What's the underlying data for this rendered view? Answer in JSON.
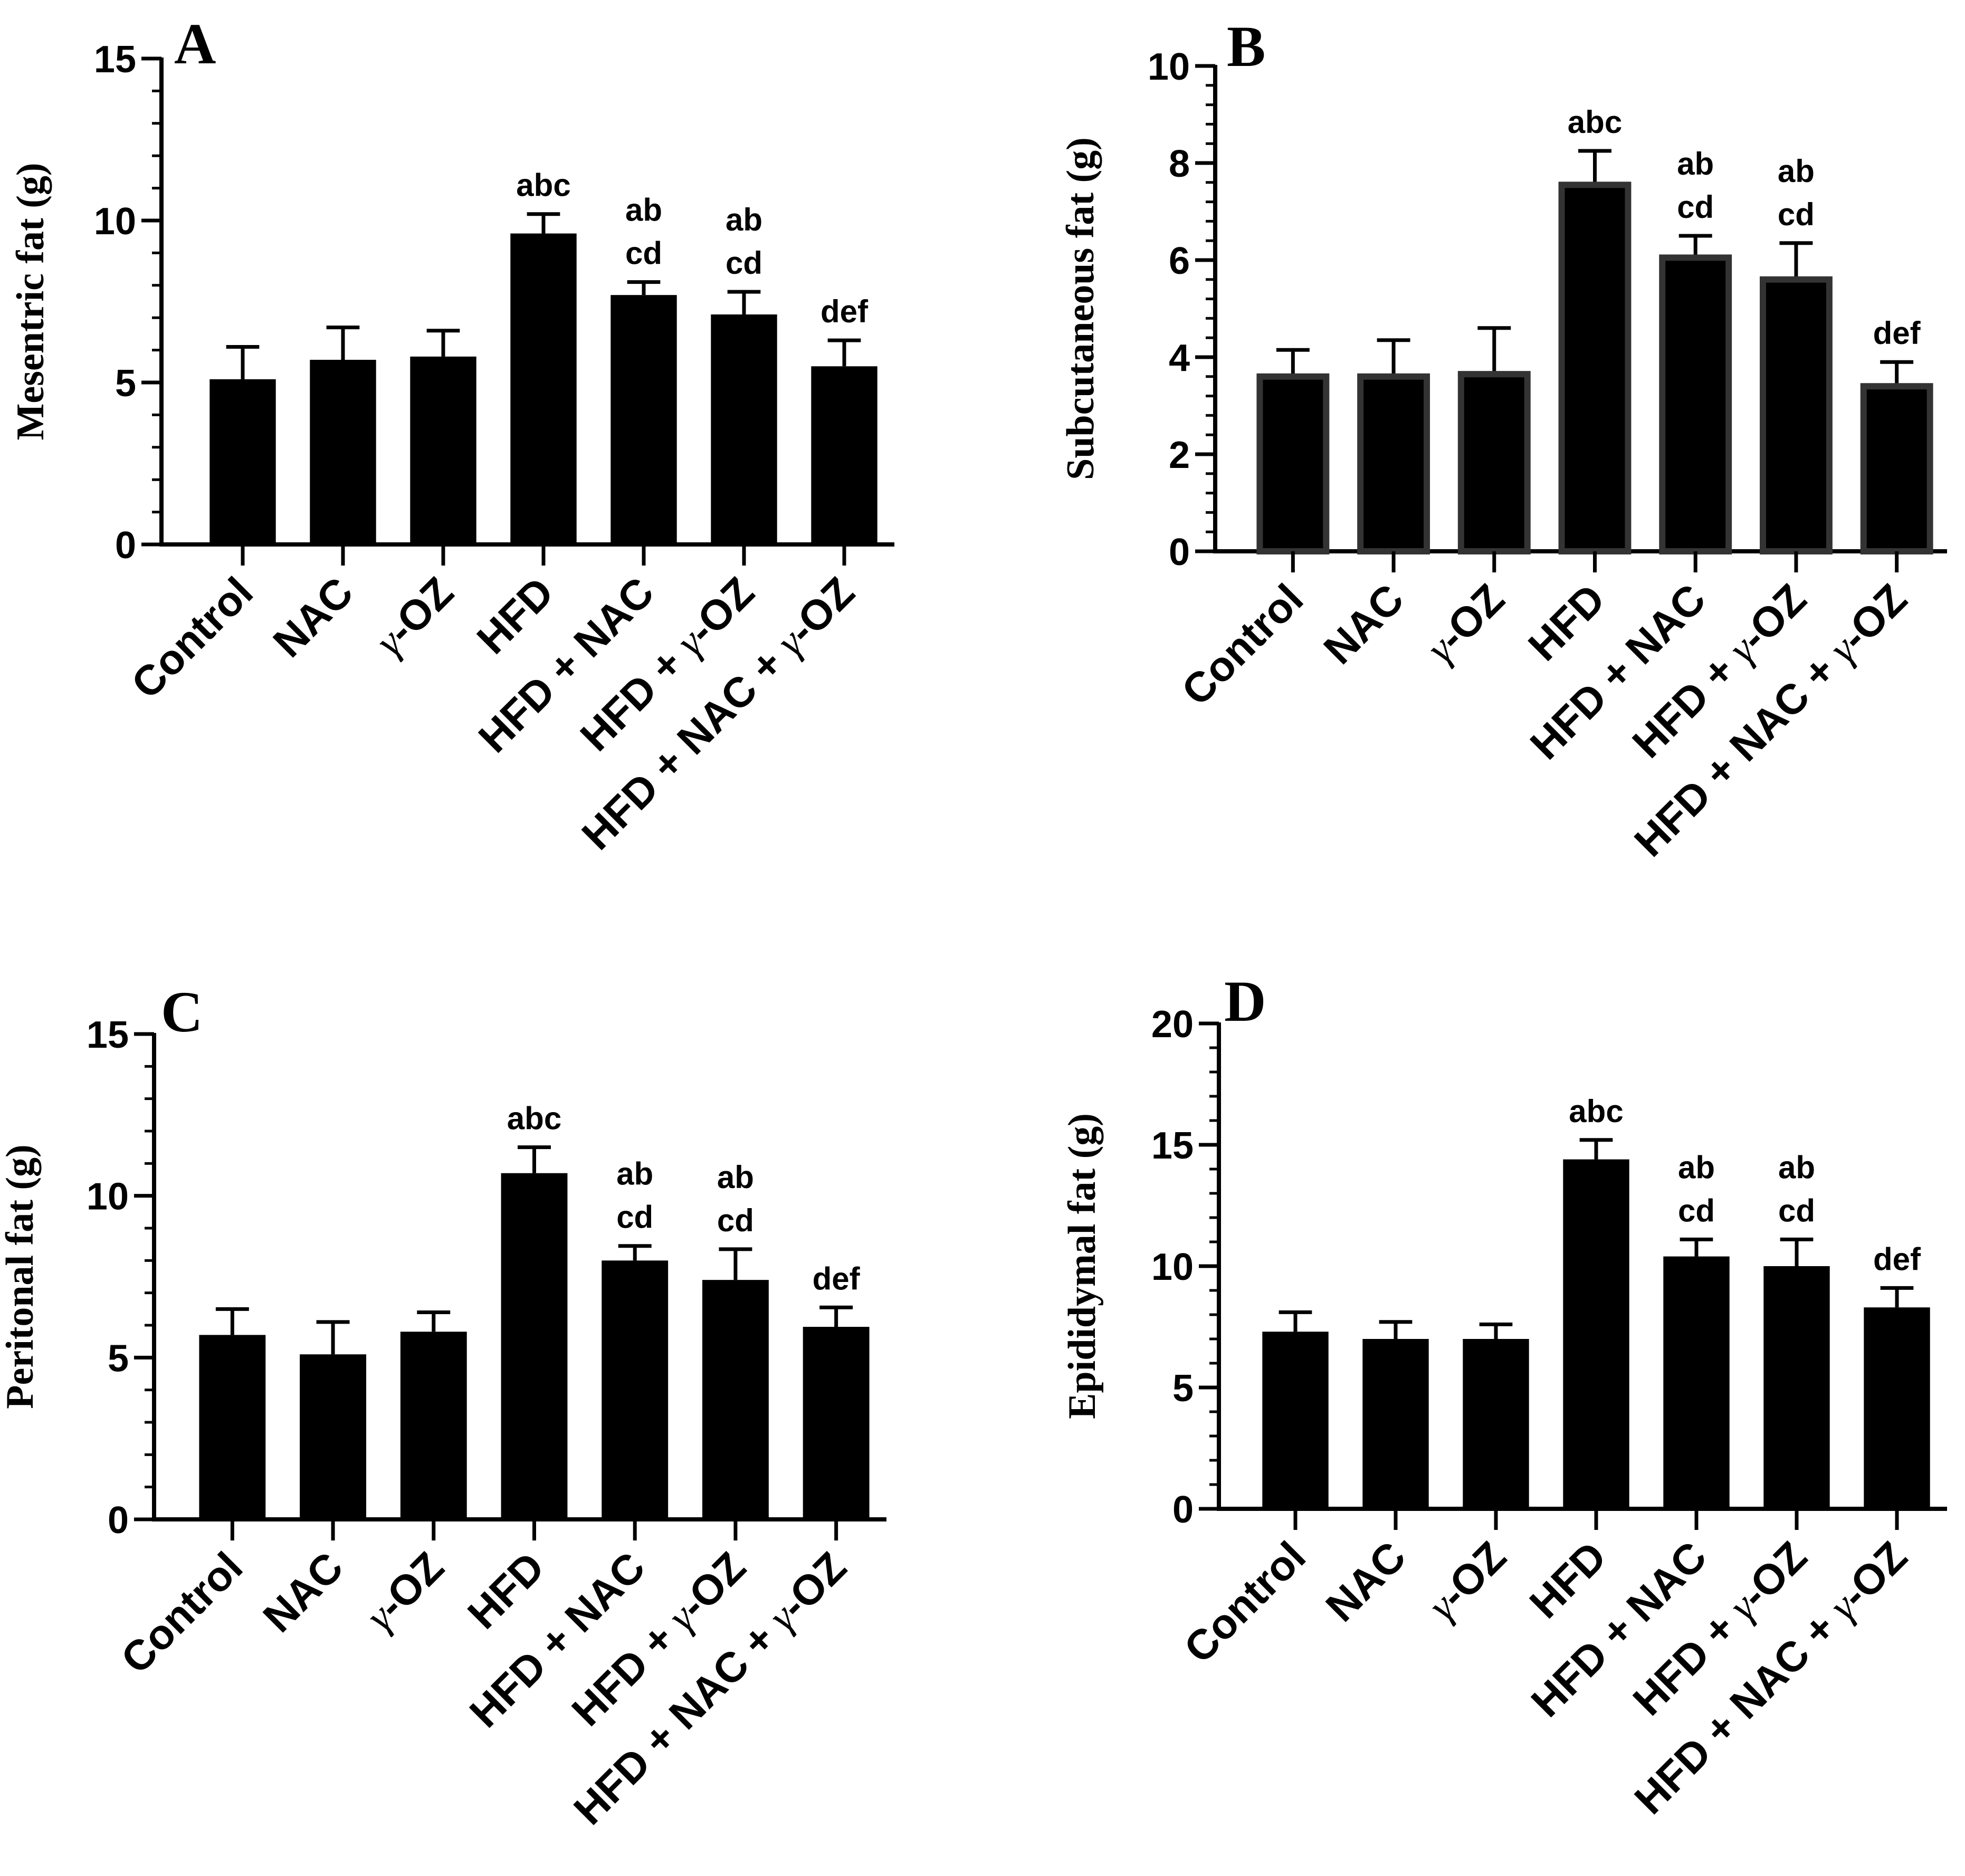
{
  "chart_data": [
    {
      "type": "bar",
      "panel": "A",
      "ylabel": "Mesentric fat (g)",
      "ylim": [
        0,
        15
      ],
      "yticks": [
        0,
        5,
        10,
        15
      ],
      "ytick_labels": [
        "0",
        "5",
        "10",
        "15"
      ],
      "categories": [
        "Control",
        "NAC",
        "γ-OZ",
        "HFD",
        "HFD + NAC",
        "HFD + γ-OZ",
        "HFD + NAC + γ-OZ"
      ],
      "values": [
        5.1,
        5.7,
        5.8,
        9.6,
        7.7,
        7.1,
        5.5
      ],
      "errors": [
        1.0,
        1.0,
        0.8,
        0.6,
        0.4,
        0.7,
        0.8
      ],
      "annotations": [
        [],
        [],
        [],
        [
          "abc"
        ],
        [
          "ab",
          "cd"
        ],
        [
          "ab",
          "cd"
        ],
        [
          "def"
        ]
      ]
    },
    {
      "type": "bar",
      "panel": "B",
      "ylabel": "Subcutaneous fat (g)",
      "ylim": [
        0,
        10
      ],
      "yticks": [
        0,
        2,
        4,
        6,
        8,
        10
      ],
      "ytick_labels": [
        "0",
        "2",
        "4",
        "6",
        "8",
        "10"
      ],
      "categories": [
        "Control",
        "NAC",
        "γ-OZ",
        "HFD",
        "HFD + NAC",
        "HFD + γ-OZ",
        "HFD + NAC + γ-OZ"
      ],
      "values": [
        3.6,
        3.6,
        3.65,
        7.55,
        6.05,
        5.6,
        3.4
      ],
      "errors": [
        0.55,
        0.75,
        0.95,
        0.7,
        0.45,
        0.75,
        0.5
      ],
      "annotations": [
        [],
        [],
        [],
        [
          "abc"
        ],
        [
          "ab",
          "cd"
        ],
        [
          "ab",
          "cd"
        ],
        [
          "def"
        ]
      ]
    },
    {
      "type": "bar",
      "panel": "C",
      "ylabel": "Peritonal fat (g)",
      "ylim": [
        0,
        15
      ],
      "yticks": [
        0,
        5,
        10,
        15
      ],
      "ytick_labels": [
        "0",
        "5",
        "10",
        "15"
      ],
      "categories": [
        "Control",
        "NAC",
        "γ-OZ",
        "HFD",
        "HFD + NAC",
        "HFD + γ-OZ",
        "HFD + NAC + γ-OZ"
      ],
      "values": [
        5.7,
        5.1,
        5.8,
        10.7,
        8.0,
        7.4,
        5.95
      ],
      "errors": [
        0.8,
        1.0,
        0.6,
        0.8,
        0.45,
        0.95,
        0.6
      ],
      "annotations": [
        [],
        [],
        [],
        [
          "abc"
        ],
        [
          "ab",
          "cd"
        ],
        [
          "ab",
          "cd"
        ],
        [
          "def"
        ]
      ]
    },
    {
      "type": "bar",
      "panel": "D",
      "ylabel": "Epididymal fat (g)",
      "ylim": [
        0,
        20
      ],
      "yticks": [
        0,
        5,
        10,
        15,
        20
      ],
      "ytick_labels": [
        "0",
        "5",
        "10",
        "15",
        "20"
      ],
      "categories": [
        "Control",
        "NAC",
        "γ-OZ",
        "HFD",
        "HFD + NAC",
        "HFD + γ-OZ",
        "HFD + NAC + γ-OZ"
      ],
      "values": [
        7.3,
        7.0,
        7.0,
        14.4,
        10.4,
        10.0,
        8.3
      ],
      "errors": [
        0.8,
        0.7,
        0.6,
        0.8,
        0.7,
        1.1,
        0.8
      ],
      "annotations": [
        [],
        [],
        [],
        [
          "abc"
        ],
        [
          "ab",
          "cd"
        ],
        [
          "ab",
          "cd"
        ],
        [
          "def"
        ]
      ]
    }
  ]
}
